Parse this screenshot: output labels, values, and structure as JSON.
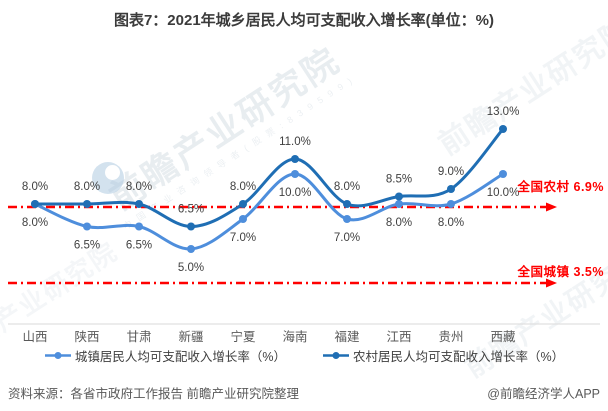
{
  "title": "图表7：2021年城乡居民人均可支配收入增长率(单位：%)",
  "chart_data": {
    "type": "line",
    "categories": [
      "山西",
      "陕西",
      "甘肃",
      "新疆",
      "宁夏",
      "海南",
      "福建",
      "江西",
      "贵州",
      "西藏"
    ],
    "series": [
      {
        "name": "城镇居民人均可支配收入增长率（%）",
        "color": "#4e8edc",
        "label_position": "below",
        "values": [
          8.0,
          6.5,
          6.5,
          5.0,
          7.0,
          10.0,
          7.0,
          8.0,
          8.0,
          10.0
        ]
      },
      {
        "name": "农村居民人均可支配收入增长率（%）",
        "color": "#1f6eb4",
        "label_position": "above",
        "values": [
          8.0,
          8.0,
          8.0,
          6.5,
          8.0,
          11.0,
          8.0,
          8.5,
          9.0,
          13.0
        ]
      }
    ],
    "annotations": [
      {
        "label": "全国农村 6.9%",
        "value": 6.9,
        "color": "#ff0000"
      },
      {
        "label": "全国城镇 3.5%",
        "value": 3.5,
        "color": "#ff0000"
      }
    ],
    "value_format": "0.0%",
    "grid": false,
    "legend_position": "bottom",
    "label_color": "#404040",
    "axis_label_color": "#595959"
  },
  "annotations": {
    "rural_national": "全国农村 6.9%",
    "urban_national": "全国城镇 3.5%"
  },
  "footer": {
    "source": "资料来源：各省市政府工作报告 前瞻产业研究院整理",
    "credit": "@前瞻经济学人APP"
  },
  "watermark": {
    "text": "前瞻产业研究院",
    "sub_text": "中国产业咨询领导者(股票:839599)"
  }
}
